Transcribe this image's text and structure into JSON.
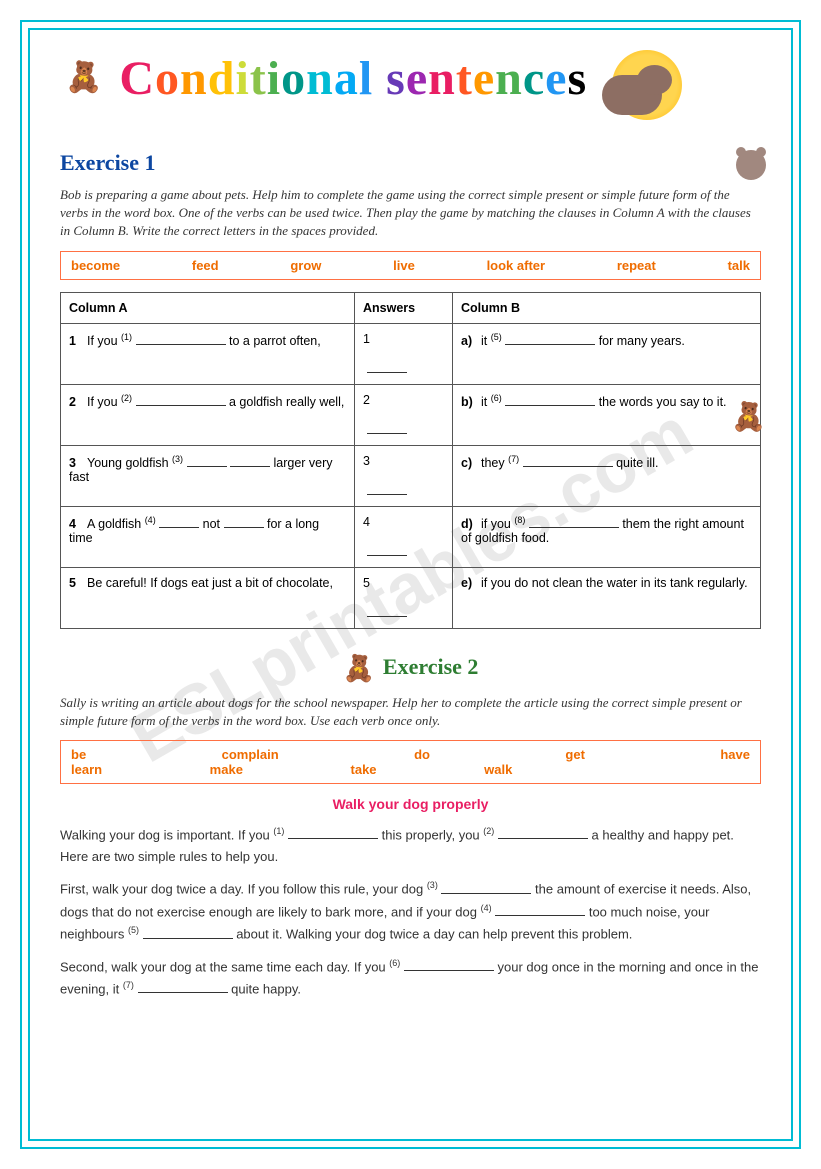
{
  "watermark": "ESLprintables.com",
  "title": "Conditional sentences",
  "exercise1": {
    "heading": "Exercise 1",
    "instructions": "Bob is preparing a game about pets. Help him to complete the game using the correct simple present or simple future form of the verbs in the word box. One of the verbs can be used twice. Then play the game by matching the clauses in Column A with the clauses in Column B. Write the correct letters in the spaces provided.",
    "wordbox": [
      "become",
      "feed",
      "grow",
      "live",
      "look after",
      "repeat",
      "talk"
    ],
    "headers": {
      "colA": "Column A",
      "ans": "Answers",
      "colB": "Column B"
    },
    "rows": [
      {
        "n": "1",
        "a_pre": "If you ",
        "a_sup": "(1)",
        "a_post": " to a parrot often,",
        "l": "a)",
        "b_pre": "it ",
        "b_sup": "(5)",
        "b_post": " for many years."
      },
      {
        "n": "2",
        "a_pre": "If you ",
        "a_sup": "(2)",
        "a_post": " a goldfish really well,",
        "l": "b)",
        "b_pre": "it ",
        "b_sup": "(6)",
        "b_post": " the words you say to it."
      },
      {
        "n": "3",
        "a_pre": "Young goldfish ",
        "a_sup": "(3)",
        "a_post2": " larger very fast",
        "l": "c)",
        "b_pre": "they ",
        "b_sup": "(7)",
        "b_post": " quite ill."
      },
      {
        "n": "4",
        "a_pre": "A goldfish ",
        "a_sup": "(4)",
        "a_mid": " not ",
        "a_post2": " for a long time",
        "l": "d)",
        "b_pre": "if you ",
        "b_sup": "(8)",
        "b_post": " them the right amount of goldfish food."
      },
      {
        "n": "5",
        "a_text": "Be careful! If dogs eat just a bit of chocolate,",
        "l": "e)",
        "b_text": "if you do not clean the water in its tank regularly."
      }
    ]
  },
  "exercise2": {
    "heading": "Exercise 2",
    "instructions": "Sally is writing an article about dogs for the school newspaper. Help her to complete the article using the correct simple present or simple future form of the verbs in the word box. Use each verb once only.",
    "wordbox_row1": [
      "be",
      "complain",
      "do",
      "get",
      "have"
    ],
    "wordbox_row2": [
      "learn",
      "make",
      "take",
      "walk"
    ],
    "article_title": "Walk your dog properly",
    "para1": {
      "t1": "Walking your dog is important. If you ",
      "s1": "(1)",
      "t2": " this properly, you ",
      "s2": "(2)",
      "t3": " a healthy and happy pet. Here are two simple rules to help you."
    },
    "para2": {
      "t1": "First, walk your dog twice a day. If you follow this rule, your dog ",
      "s1": "(3)",
      "t2": " the amount of exercise it needs. Also, dogs that do not exercise enough are likely to bark more, and if your dog ",
      "s2": "(4)",
      "t3": " too much noise, your neighbours ",
      "s3": "(5)",
      "t4": " about it. Walking your dog twice a day can help prevent this problem."
    },
    "para3": {
      "t1": "Second, walk your dog at the same time each day. If you ",
      "s1": "(6)",
      "t2": " your dog once in the morning and once in the evening, it ",
      "s2": "(7)",
      "t3": " quite happy."
    }
  }
}
